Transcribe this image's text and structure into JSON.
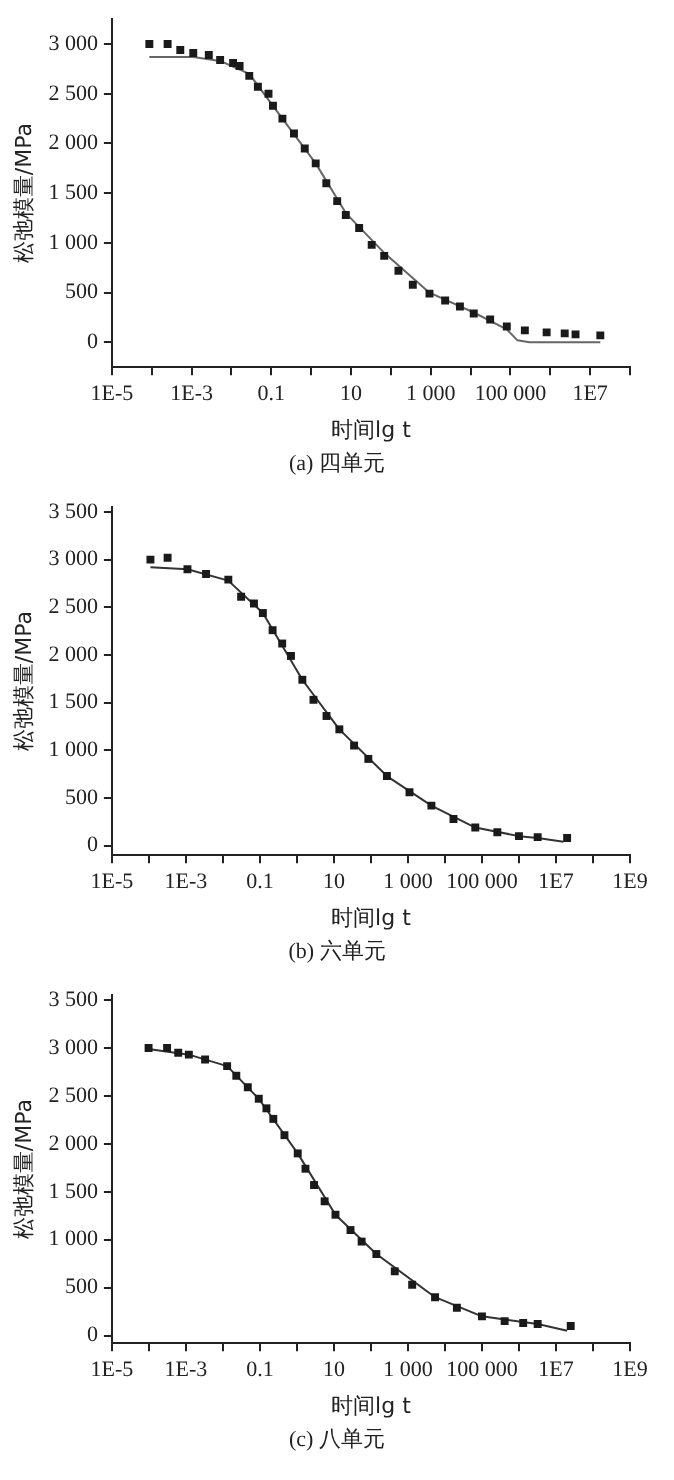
{
  "chart_data": [
    {
      "type": "scatter",
      "ylabel": "松弛模量/MPa",
      "xlabel": "时间lg t",
      "annotations": [
        "(a) 四单元"
      ],
      "legend": false,
      "grid": false,
      "log": "x",
      "xlim": [
        1e-05,
        100000000.0
      ],
      "ylim": [
        -250,
        3250
      ],
      "xticks": [
        {
          "value": 1e-05,
          "label": "1E-5"
        },
        {
          "value": 0.0001,
          "label": null
        },
        {
          "value": 0.001,
          "label": "1E-3"
        },
        {
          "value": 0.01,
          "label": null
        },
        {
          "value": 0.1,
          "label": "0.1"
        },
        {
          "value": 1,
          "label": null
        },
        {
          "value": 10,
          "label": "10"
        },
        {
          "value": 100,
          "label": null
        },
        {
          "value": 1000,
          "label": "1 000"
        },
        {
          "value": 10000,
          "label": null
        },
        {
          "value": 100000,
          "label": "100 000"
        },
        {
          "value": 1000000,
          "label": null
        },
        {
          "value": 10000000,
          "label": "1E7"
        },
        {
          "value": 100000000,
          "label": null
        }
      ],
      "yticks": [
        {
          "value": 0,
          "label": "0"
        },
        {
          "value": 500,
          "label": "500"
        },
        {
          "value": 1000,
          "label": "1 000"
        },
        {
          "value": 1500,
          "label": "1 500"
        },
        {
          "value": 2000,
          "label": "2 000"
        },
        {
          "value": 2500,
          "label": "2 500"
        },
        {
          "value": 3000,
          "label": "3 000"
        }
      ],
      "series": [
        {
          "marker": "square",
          "color": "#1a1a1a",
          "x": [
            8.7e-05,
            0.00025,
            0.00052,
            0.0011,
            0.0027,
            0.0052,
            0.011,
            0.016,
            0.028,
            0.046,
            0.085,
            0.11,
            0.19,
            0.37,
            0.69,
            1.3,
            2.4,
            4.5,
            7.4,
            16,
            33,
            68,
            155,
            355,
            930,
            2300,
            5400,
            12000,
            31000,
            81000,
            230000,
            810000,
            2300000,
            4300000,
            18000000
          ],
          "values": [
            3000,
            3000,
            2940,
            2910,
            2890,
            2840,
            2810,
            2780,
            2680,
            2570,
            2500,
            2380,
            2250,
            2100,
            1950,
            1800,
            1600,
            1420,
            1280,
            1150,
            980,
            870,
            720,
            580,
            490,
            420,
            360,
            290,
            230,
            160,
            120,
            100,
            90,
            80,
            70
          ]
        },
        {
          "type": "line",
          "marker": "none",
          "color": "#666666",
          "x": [
            8.7e-05,
            0.0011,
            0.0052,
            0.028,
            0.19,
            1.3,
            7.4,
            68,
            930,
            12000,
            81000,
            150000,
            300000,
            18000000
          ],
          "values": [
            2870,
            2870,
            2830,
            2700,
            2250,
            1800,
            1300,
            900,
            500,
            300,
            130,
            20,
            0,
            0
          ]
        }
      ]
    },
    {
      "type": "scatter",
      "ylabel": "松弛模量/MPa",
      "xlabel": "时间lg t",
      "annotations": [
        "(b) 六单元"
      ],
      "legend": false,
      "grid": false,
      "log": "x",
      "xlim": [
        1e-05,
        1000000000.0
      ],
      "ylim": [
        -100,
        3550
      ],
      "xticks": [
        {
          "value": 1e-05,
          "label": "1E-5"
        },
        {
          "value": 0.0001,
          "label": null
        },
        {
          "value": 0.001,
          "label": "1E-3"
        },
        {
          "value": 0.01,
          "label": null
        },
        {
          "value": 0.1,
          "label": "0.1"
        },
        {
          "value": 1,
          "label": null
        },
        {
          "value": 10,
          "label": "10"
        },
        {
          "value": 100,
          "label": null
        },
        {
          "value": 1000,
          "label": "1 000"
        },
        {
          "value": 10000,
          "label": null
        },
        {
          "value": 100000,
          "label": "100 000"
        },
        {
          "value": 1000000,
          "label": null
        },
        {
          "value": 10000000,
          "label": "1E7"
        },
        {
          "value": 100000000,
          "label": null
        },
        {
          "value": 1000000000,
          "label": "1E9"
        }
      ],
      "yticks": [
        {
          "value": 0,
          "label": "0"
        },
        {
          "value": 500,
          "label": "500"
        },
        {
          "value": 1000,
          "label": "1 000"
        },
        {
          "value": 1500,
          "label": "1 500"
        },
        {
          "value": 2000,
          "label": "2 000"
        },
        {
          "value": 2500,
          "label": "2 500"
        },
        {
          "value": 3000,
          "label": "3 000"
        },
        {
          "value": 3500,
          "label": "3 500"
        }
      ],
      "series": [
        {
          "marker": "square",
          "color": "#1a1a1a",
          "x": [
            0.00011,
            0.00032,
            0.0011,
            0.0035,
            0.014,
            0.031,
            0.069,
            0.12,
            0.22,
            0.4,
            0.69,
            1.4,
            2.8,
            6.3,
            14,
            35,
            85,
            270,
            1100,
            4300,
            17000,
            66000,
            260000,
            1000000,
            3200000,
            20000000
          ],
          "values": [
            3000,
            3020,
            2900,
            2850,
            2790,
            2610,
            2540,
            2440,
            2260,
            2120,
            1990,
            1740,
            1530,
            1360,
            1220,
            1050,
            910,
            730,
            560,
            420,
            280,
            190,
            140,
            100,
            90,
            80
          ]
        },
        {
          "type": "line",
          "marker": "none",
          "color": "#333333",
          "x": [
            0.00011,
            0.0011,
            0.014,
            0.12,
            1.4,
            14,
            270,
            4300,
            66000,
            1000000,
            3200000,
            16000000
          ],
          "values": [
            2920,
            2900,
            2780,
            2440,
            1740,
            1220,
            730,
            420,
            190,
            100,
            80,
            40
          ]
        }
      ]
    },
    {
      "type": "scatter",
      "ylabel": "松弛模量/MPa",
      "xlabel": "时间lg t",
      "annotations": [
        "(c) 八单元"
      ],
      "legend": false,
      "grid": false,
      "log": "x",
      "xlim": [
        1e-05,
        1000000000.0
      ],
      "ylim": [
        -80,
        3550
      ],
      "xticks": [
        {
          "value": 1e-05,
          "label": "1E-5"
        },
        {
          "value": 0.0001,
          "label": null
        },
        {
          "value": 0.001,
          "label": "1E-3"
        },
        {
          "value": 0.01,
          "label": null
        },
        {
          "value": 0.1,
          "label": "0.1"
        },
        {
          "value": 1,
          "label": null
        },
        {
          "value": 10,
          "label": "10"
        },
        {
          "value": 100,
          "label": null
        },
        {
          "value": 1000,
          "label": "1 000"
        },
        {
          "value": 10000,
          "label": null
        },
        {
          "value": 100000,
          "label": "100 000"
        },
        {
          "value": 1000000,
          "label": null
        },
        {
          "value": 10000000,
          "label": "1E7"
        },
        {
          "value": 100000000,
          "label": null
        },
        {
          "value": 1000000000,
          "label": "1E9"
        }
      ],
      "yticks": [
        {
          "value": 0,
          "label": "0"
        },
        {
          "value": 500,
          "label": "500"
        },
        {
          "value": 1000,
          "label": "1 000"
        },
        {
          "value": 1500,
          "label": "1 500"
        },
        {
          "value": 2000,
          "label": "2 000"
        },
        {
          "value": 2500,
          "label": "2 500"
        },
        {
          "value": 3000,
          "label": "3 000"
        },
        {
          "value": 3500,
          "label": "3 500"
        }
      ],
      "series": [
        {
          "marker": "square",
          "color": "#1a1a1a",
          "x": [
            9.8e-05,
            0.00031,
            0.00062,
            0.0012,
            0.0033,
            0.013,
            0.023,
            0.047,
            0.093,
            0.15,
            0.23,
            0.46,
            1.05,
            1.7,
            2.9,
            5.6,
            11,
            28,
            56,
            140,
            440,
            1300,
            5400,
            21000,
            100000,
            410000,
            1300000,
            3200000,
            25000000
          ],
          "values": [
            3000,
            3000,
            2950,
            2930,
            2880,
            2810,
            2710,
            2590,
            2470,
            2370,
            2260,
            2090,
            1900,
            1740,
            1570,
            1400,
            1260,
            1100,
            980,
            850,
            670,
            530,
            400,
            290,
            200,
            150,
            130,
            120,
            100
          ]
        },
        {
          "type": "line",
          "marker": "none",
          "color": "#333333",
          "x": [
            9.8e-05,
            0.0012,
            0.013,
            0.093,
            1.05,
            11,
            140,
            5400,
            100000,
            3200000,
            20000000
          ],
          "values": [
            2990,
            2930,
            2810,
            2470,
            1900,
            1260,
            850,
            400,
            200,
            120,
            50
          ]
        }
      ]
    }
  ]
}
